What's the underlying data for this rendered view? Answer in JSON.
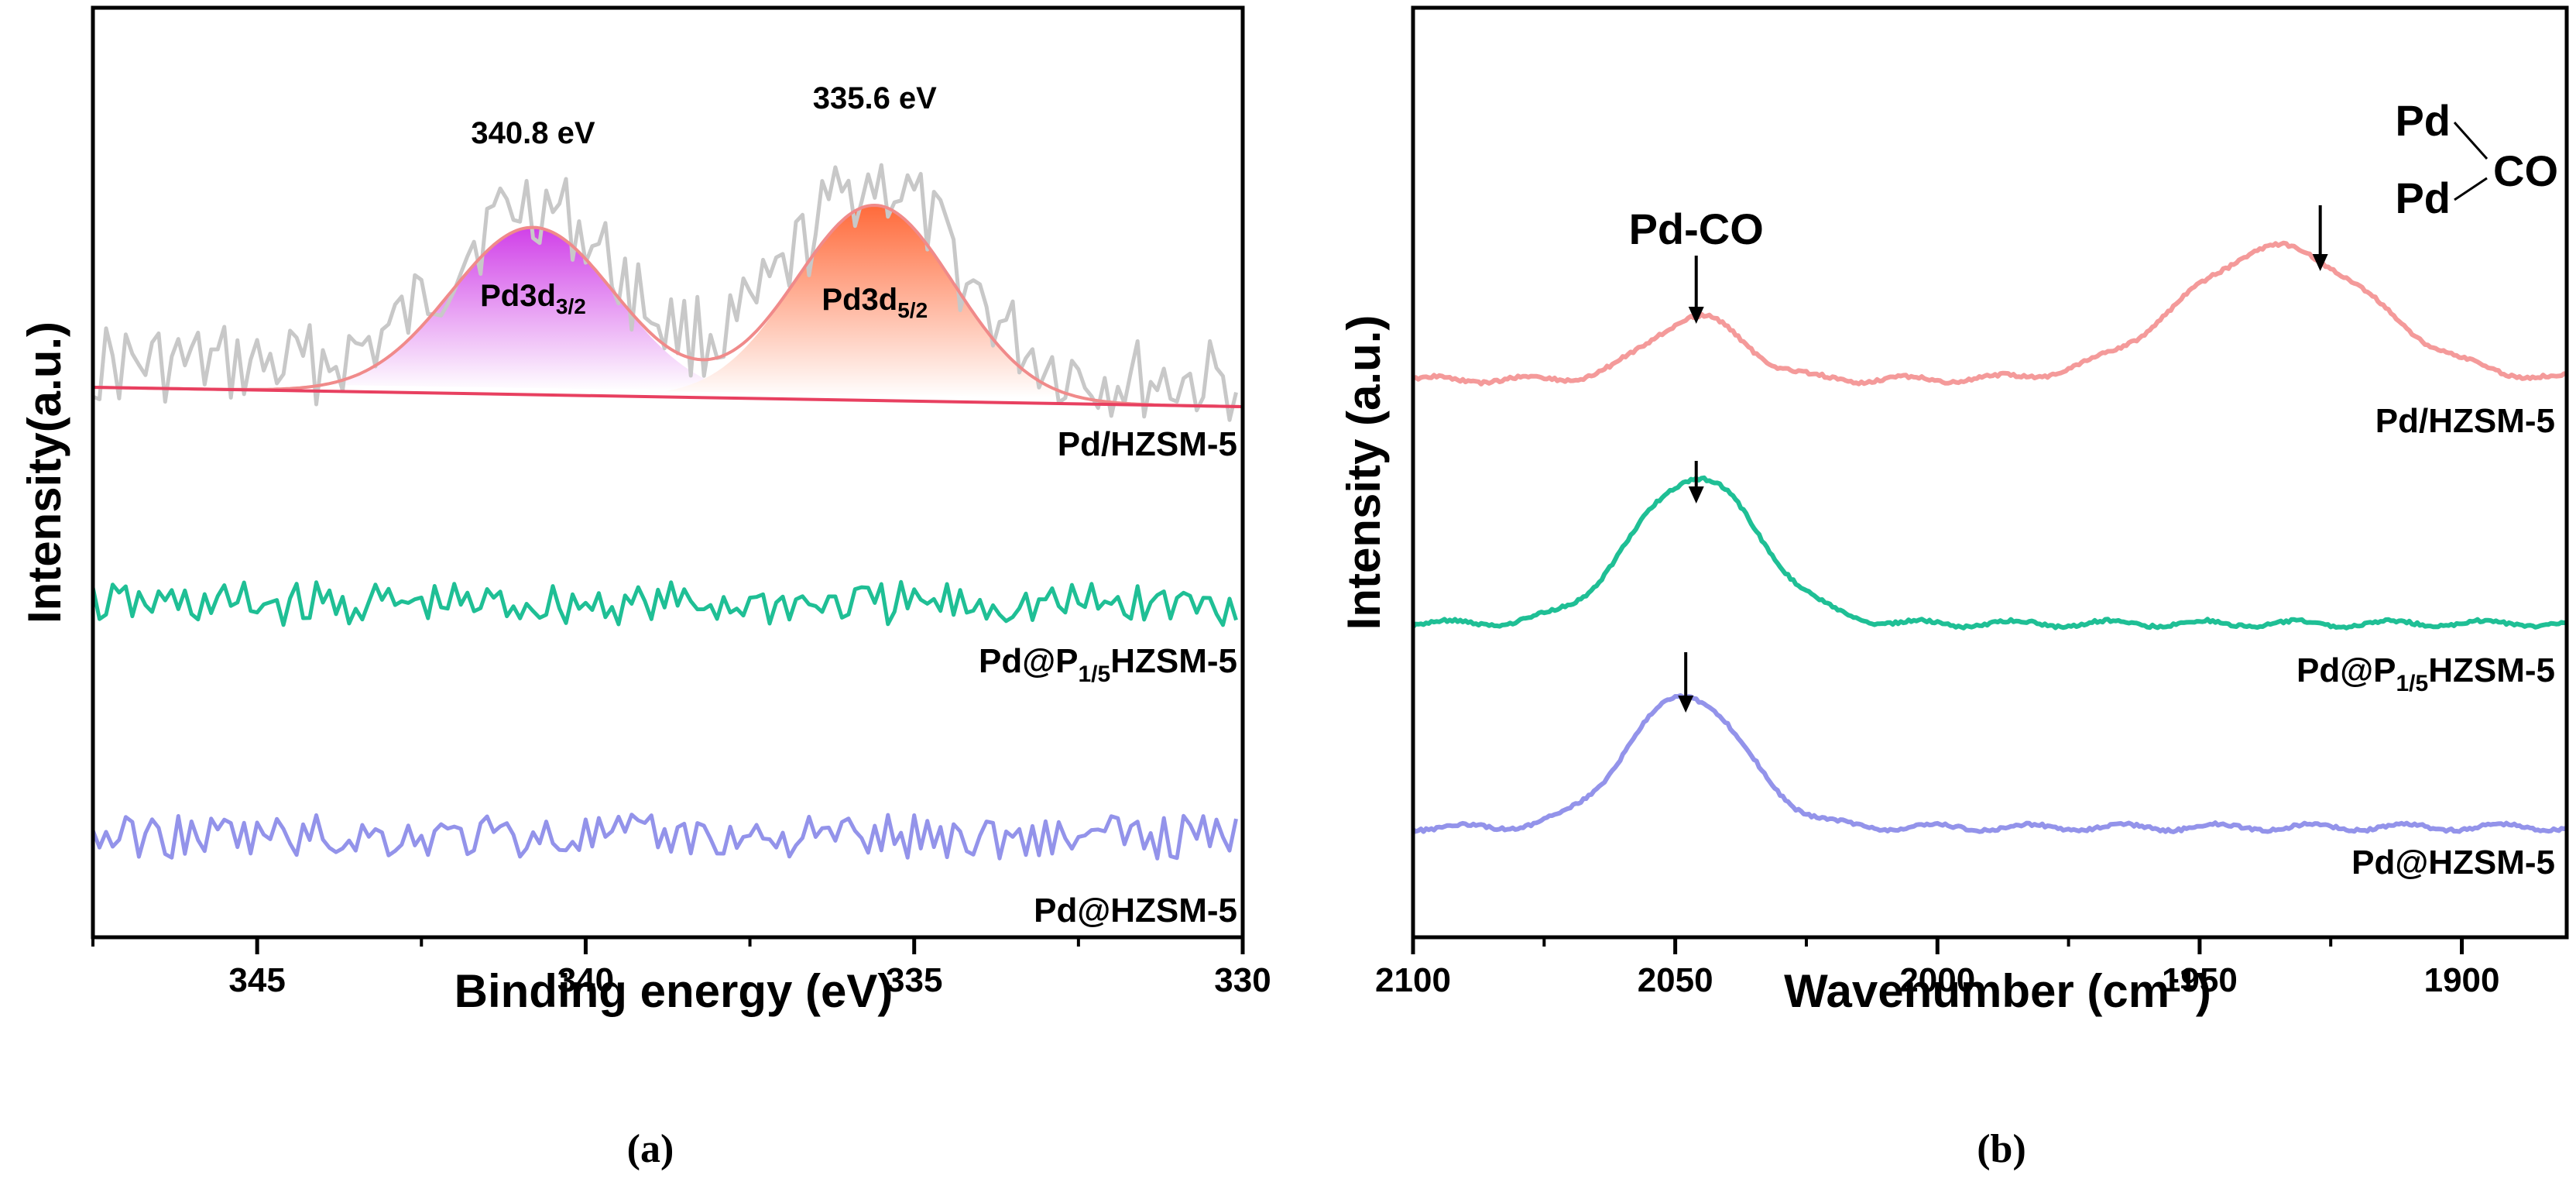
{
  "chart_data": [
    {
      "type": "line",
      "panel_label": "(a)",
      "xlabel": "Binding energy (eV)",
      "ylabel": "Intensity(a.u.)",
      "xlim": [
        347.5,
        330
      ],
      "x_reversed": true,
      "x_ticks": [
        345,
        340,
        335,
        330
      ],
      "y_ticks_shown": false,
      "series": [
        {
          "name": "Pd/HZSM-5",
          "color": "#c8c8c8",
          "kind": "raw-noisy",
          "baseline": 1.0,
          "noise": 0.06
        },
        {
          "name": "Pd@P1/5HZSM-5",
          "color": "#1fbf95",
          "kind": "noisy",
          "baseline": 0.55,
          "noise": 0.04
        },
        {
          "name": "Pd@HZSM-5",
          "color": "#9393ea",
          "kind": "noisy",
          "baseline": 0.2,
          "noise": 0.04
        }
      ],
      "fits": [
        {
          "name": "Pd3d3/2",
          "center": 340.8,
          "height": 0.24,
          "sigma": 1.25,
          "fill_from": "#d040e8",
          "fill_to": "#ffffff"
        },
        {
          "name": "Pd3d5/2",
          "center": 335.6,
          "height": 0.28,
          "sigma": 1.2,
          "fill_from": "#ff6a3a",
          "fill_to": "#ffffff"
        }
      ],
      "fit_curve_color": "#f08a8a",
      "baseline_color": "#e84060",
      "annotations": [
        {
          "text": "340.8 eV",
          "x": 340.8
        },
        {
          "text": "335.6 eV",
          "x": 335.6
        }
      ],
      "labels": {
        "peak1_main": "Pd3d",
        "peak1_sub": "3/2",
        "peak2_main": "Pd3d",
        "peak2_sub": "5/2",
        "series1": "Pd/HZSM-5",
        "series2_a": "Pd@P",
        "series2_sub": "1/5",
        "series2_b": "HZSM-5",
        "series3": "Pd@HZSM-5"
      }
    },
    {
      "type": "line",
      "panel_label": "(b)",
      "xlabel_main": "Wavenumber (cm",
      "xlabel_sup": "-1",
      "xlabel_end": ")",
      "ylabel": "Intensity (a.u.)",
      "xlim": [
        2100,
        1880
      ],
      "x_reversed": true,
      "x_ticks": [
        2100,
        2050,
        2000,
        1950,
        1900
      ],
      "y_ticks_shown": false,
      "series": [
        {
          "name": "Pd/HZSM-5",
          "color": "#f49a9a",
          "baseline": 1.0,
          "peaks": [
            {
              "center": 2046,
              "height": 0.09,
              "sigma": 9
            },
            {
              "center": 1935,
              "height": 0.19,
              "sigma": 18
            }
          ]
        },
        {
          "name": "Pd@P1/5HZSM-5",
          "color": "#1fbf95",
          "baseline": 0.55,
          "peaks": [
            {
              "center": 2046,
              "height": 0.21,
              "sigma": 12
            }
          ]
        },
        {
          "name": "Pd@HZSM-5",
          "color": "#9393ea",
          "baseline": 0.18,
          "peaks": [
            {
              "center": 2048,
              "height": 0.19,
              "sigma": 11
            }
          ]
        }
      ],
      "annotations": {
        "pdco": "Pd-CO",
        "bridge_pd_top": "Pd",
        "bridge_pd_bottom": "Pd",
        "bridge_co": "CO"
      },
      "labels": {
        "series1": "Pd/HZSM-5",
        "series2_a": "Pd@P",
        "series2_sub": "1/5",
        "series2_b": "HZSM-5",
        "series3": "Pd@HZSM-5"
      }
    }
  ]
}
